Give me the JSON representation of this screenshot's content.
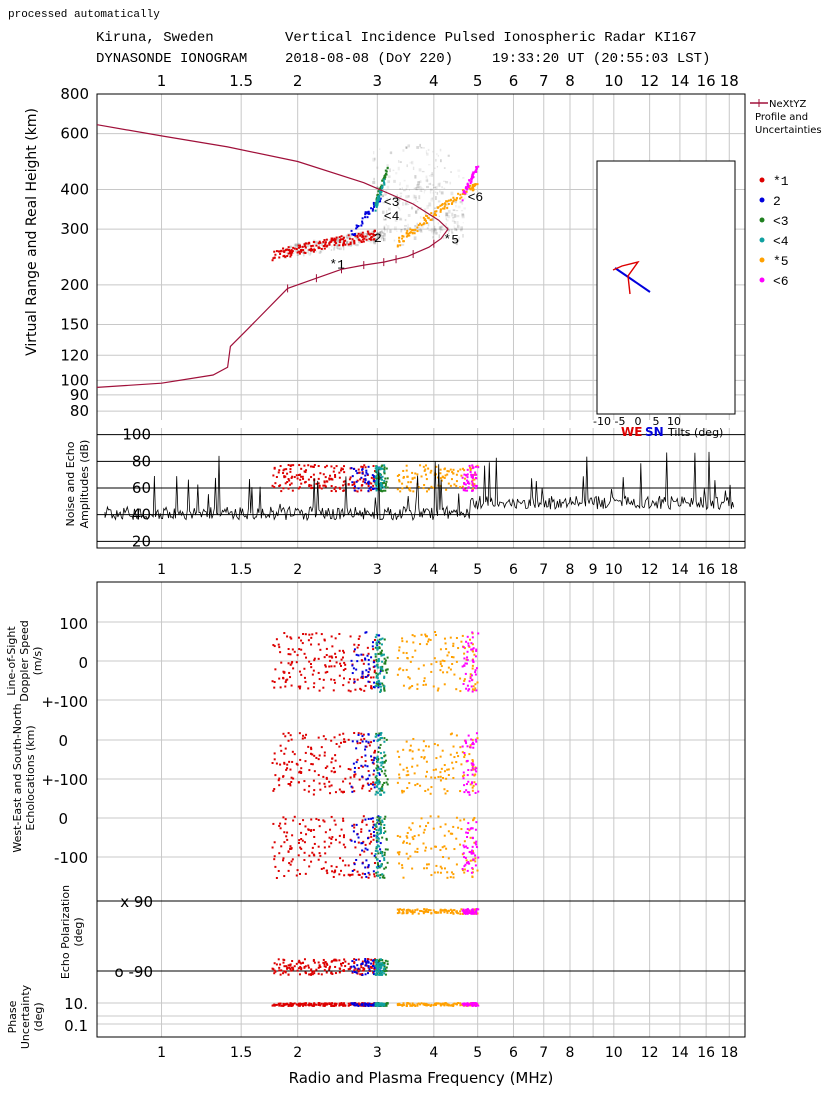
{
  "header": {
    "processed": "processed automatically",
    "line1_left": "Kiruna, Sweden",
    "line1_right": "Vertical Incidence Pulsed Ionospheric Radar KI167",
    "line2_left": "DYNASONDE IONOGRAM",
    "line2_date": "2018-08-08 (DoY 220)",
    "line2_time": "19:33:20 UT (20:55:03 LST)"
  },
  "x_axis": {
    "label": "Radio and Plasma Frequency (MHz)",
    "ticks": [
      "1",
      "1.5",
      "2",
      "3",
      "4",
      "5",
      "6",
      "7",
      "8",
      "9",
      "10",
      "12",
      "14",
      "16",
      "18"
    ],
    "top_ticks": [
      "1",
      "1.5",
      "2",
      "3",
      "4",
      "5",
      "6",
      "7",
      "8",
      "10",
      "12",
      "14",
      "16",
      "18"
    ],
    "scale": "log",
    "range_mhz": [
      0.72,
      19.5
    ]
  },
  "panels": {
    "height": {
      "ylabel": "Virtual Range and Real Height (km)",
      "yticks": [
        "800",
        "600",
        "400",
        "300",
        "200",
        "150",
        "120",
        "100",
        "90",
        "80"
      ],
      "legend_title": "NeXtYZ Profile and Uncertainties",
      "markers": [
        {
          "key": "m1",
          "symbol": "*1",
          "color": "#dd0000"
        },
        {
          "key": "m2",
          "symbol": " 2",
          "color": "#0000dd"
        },
        {
          "key": "m3",
          "symbol": "<3",
          "color": "#208020"
        },
        {
          "key": "m4",
          "symbol": "<4",
          "color": "#10a0a0"
        },
        {
          "key": "m5",
          "symbol": "*5",
          "color": "#ffa000"
        },
        {
          "key": "m6",
          "symbol": "<6",
          "color": "#ff00ff"
        }
      ],
      "trace_labels": [
        "*1",
        "2",
        "<3",
        "<4",
        "*5",
        "<6"
      ],
      "tilt_inset": {
        "ticks": [
          "-10",
          "-5",
          "0",
          "5",
          "10"
        ],
        "we": "WE",
        "sn": "SN",
        "label": "Tilts (deg)",
        "we_color": "#dd0000",
        "sn_color": "#0000dd"
      }
    },
    "amplitude": {
      "ylabel": "Noise and Echo Amplitudes (dB)",
      "yticks": [
        "100",
        "80",
        "60",
        "40",
        "20"
      ]
    },
    "doppler": {
      "ylabel": "Line-of-Sight Doppler Speed (m/s)",
      "yticks": [
        "100",
        "0",
        "+-100"
      ]
    },
    "location": {
      "ylabel": "West-East and South-North Echolocations (km)",
      "yticks_sn": [
        "0",
        "+-100"
      ],
      "yticks_we": [
        "0",
        "-100"
      ]
    },
    "polarization": {
      "ylabel": "Echo Polarization (deg)",
      "yticks": [
        "x 90",
        "o -90"
      ]
    },
    "phase": {
      "ylabel": "Phase Uncertainty (deg)",
      "yticks": [
        "10.",
        "0.1"
      ]
    }
  },
  "chart_data": {
    "type": "scatter",
    "title": "Vertical Incidence Pulsed Ionospheric Radar KI167",
    "xlabel": "Radio and Plasma Frequency (MHz)",
    "ylabel": "Virtual Range and Real Height (km)",
    "x_scale": "log",
    "ylim": [
      75,
      800
    ],
    "profile": {
      "name": "NeXtYZ Profile and Uncertainties",
      "color": "#a0103a",
      "points": [
        [
          0.72,
          95
        ],
        [
          1.0,
          98
        ],
        [
          1.3,
          104
        ],
        [
          1.4,
          110
        ],
        [
          1.42,
          128
        ],
        [
          1.55,
          145
        ],
        [
          1.9,
          195
        ],
        [
          2.2,
          210
        ],
        [
          2.5,
          224
        ],
        [
          2.8,
          231
        ],
        [
          3.1,
          236
        ],
        [
          3.5,
          246
        ],
        [
          3.9,
          263
        ],
        [
          4.15,
          280
        ],
        [
          4.3,
          300
        ],
        [
          4.1,
          320
        ],
        [
          3.6,
          360
        ],
        [
          2.8,
          420
        ],
        [
          2.0,
          490
        ],
        [
          1.4,
          545
        ],
        [
          1.0,
          590
        ],
        [
          0.72,
          640
        ]
      ]
    },
    "series": [
      {
        "name": "*1",
        "color": "#dd0000",
        "x_range": [
          1.75,
          2.95
        ],
        "h_range": [
          250,
          290
        ]
      },
      {
        "name": "2",
        "color": "#0000dd",
        "x_range": [
          2.6,
          3.05
        ],
        "h_range": [
          285,
          380
        ]
      },
      {
        "name": "<3",
        "color": "#208020",
        "x_range": [
          2.95,
          3.15
        ],
        "h_range": [
          360,
          470
        ]
      },
      {
        "name": "<4",
        "color": "#10a0a0",
        "x_range": [
          2.95,
          3.1
        ],
        "h_range": [
          350,
          430
        ]
      },
      {
        "name": "*5",
        "color": "#ffa000",
        "x_range": [
          3.3,
          5.0
        ],
        "h_range": [
          270,
          420
        ]
      },
      {
        "name": "<6",
        "color": "#ff00ff",
        "x_range": [
          4.6,
          5.0
        ],
        "h_range": [
          380,
          480
        ]
      }
    ]
  }
}
